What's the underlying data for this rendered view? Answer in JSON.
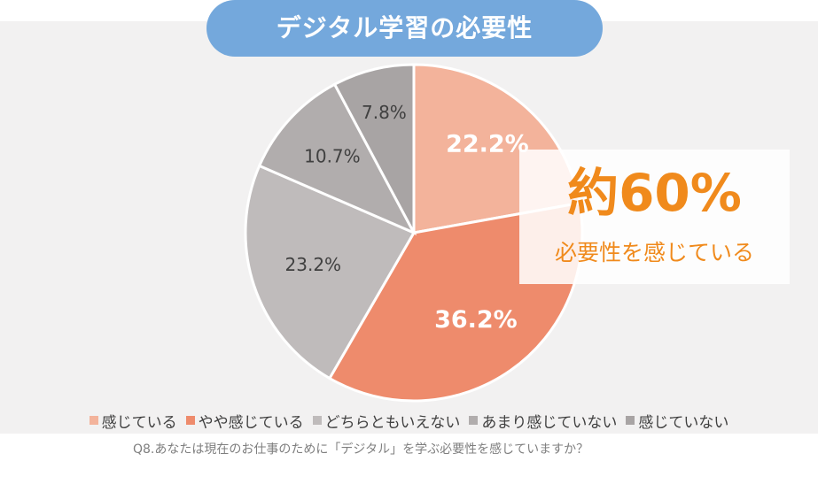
{
  "title": "デジタル学習の必要性",
  "callout": {
    "headline": "約60%",
    "subtext": "必要性を感じている"
  },
  "question": "Q8.あなたは現在のお仕事のために「デジタル」を学ぶ必要性を感じていますか？",
  "chart_data": {
    "type": "pie",
    "title": "デジタル学習の必要性",
    "legend_position": "bottom",
    "slices": [
      {
        "label": "感じている",
        "value": 22.2,
        "display": "22.2%",
        "color": "#f3b39b",
        "label_color": "#ffffff"
      },
      {
        "label": "やや感じている",
        "value": 36.2,
        "display": "36.2%",
        "color": "#ee8b6c",
        "label_color": "#ffffff"
      },
      {
        "label": "どちらともいえない",
        "value": 23.2,
        "display": "23.2%",
        "color": "#bfbbbb",
        "label_color": "#404040"
      },
      {
        "label": "あまり感じていない",
        "value": 10.7,
        "display": "10.7%",
        "color": "#b1adad",
        "label_color": "#404040"
      },
      {
        "label": "感じていない",
        "value": 7.8,
        "display": "7.8%",
        "color": "#a8a4a4",
        "label_color": "#404040"
      }
    ]
  }
}
